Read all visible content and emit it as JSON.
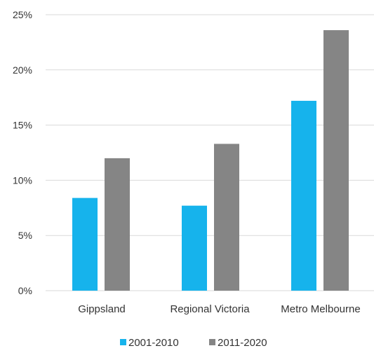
{
  "chart_data": {
    "type": "bar",
    "categories": [
      "Gippsland",
      "Regional Victoria",
      "Metro Melbourne"
    ],
    "series": [
      {
        "name": "2001-2010",
        "color": "#16b3ec",
        "values": [
          8.4,
          7.7,
          17.2
        ]
      },
      {
        "name": "2011-2020",
        "color": "#858585",
        "values": [
          12.0,
          13.3,
          23.6
        ]
      }
    ],
    "ylim": [
      0,
      25
    ],
    "yticks": [
      {
        "value": 0,
        "label": "0%"
      },
      {
        "value": 5,
        "label": "5%"
      },
      {
        "value": 10,
        "label": "10%"
      },
      {
        "value": 15,
        "label": "15%"
      },
      {
        "value": 20,
        "label": "20%"
      },
      {
        "value": 25,
        "label": "25%"
      }
    ],
    "grid": true,
    "legend_position": "bottom-center",
    "title": "",
    "xlabel": "",
    "ylabel": ""
  }
}
